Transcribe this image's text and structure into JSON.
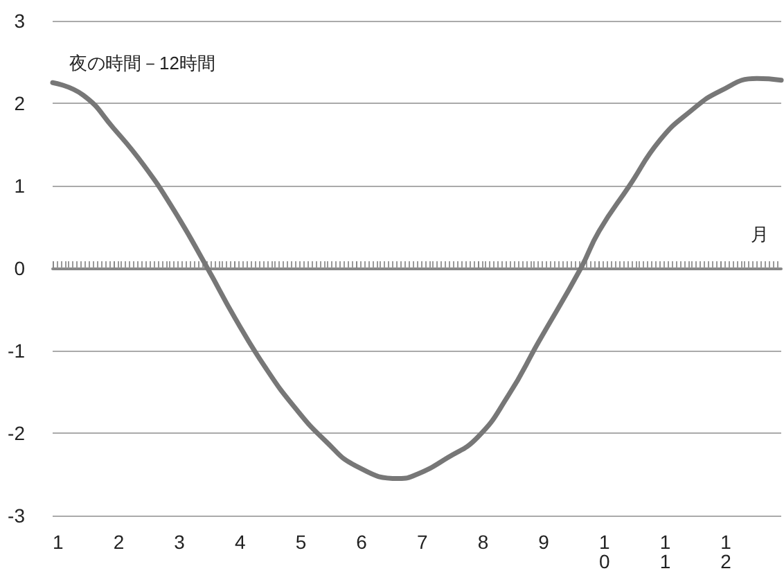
{
  "chart_data": {
    "type": "line",
    "xlabel": "月",
    "annotations": [
      "夜の時間－12時間"
    ],
    "x": [
      1,
      1.5,
      2,
      2.5,
      3,
      3.55,
      4,
      4.5,
      5,
      5.5,
      6,
      6.7,
      7,
      7.5,
      8,
      8.5,
      9,
      9.7,
      10,
      10.5,
      11,
      11.5,
      12,
      12.6,
      13
    ],
    "series": [
      {
        "color": "#777777",
        "values": [
          2.25,
          2.1,
          1.7,
          1.25,
          0.7,
          0,
          -0.6,
          -1.2,
          -1.7,
          -2.1,
          -2.4,
          -2.55,
          -2.5,
          -2.3,
          -2.05,
          -1.55,
          -0.9,
          0,
          0.45,
          1.0,
          1.55,
          1.9,
          2.15,
          2.3,
          2.28
        ]
      }
    ],
    "xlim": [
      1,
      13
    ],
    "xticks": [
      1,
      2,
      3,
      4,
      5,
      6,
      7,
      8,
      9,
      10,
      11,
      12
    ],
    "ylim": [
      -3,
      3
    ],
    "yticks": [
      -3,
      -2,
      -1,
      0,
      1,
      2,
      3
    ],
    "grid": "y",
    "marker": "none",
    "line_style": "solid"
  }
}
